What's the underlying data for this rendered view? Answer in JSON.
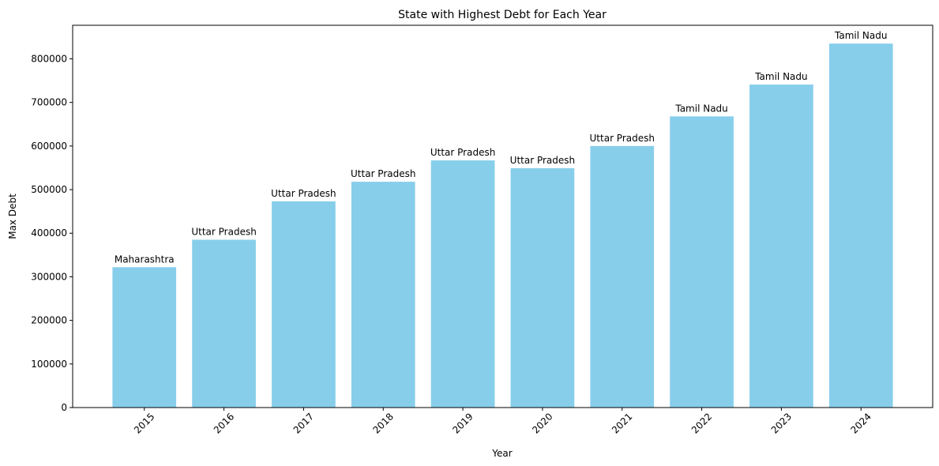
{
  "chart_data": {
    "type": "bar",
    "title": "State with Highest Debt for Each Year",
    "xlabel": "Year",
    "ylabel": "Max Debt",
    "categories": [
      "2015",
      "2016",
      "2017",
      "2018",
      "2019",
      "2020",
      "2021",
      "2022",
      "2023",
      "2024"
    ],
    "values": [
      322000,
      385000,
      473000,
      518000,
      567000,
      549000,
      600000,
      668000,
      741000,
      835000
    ],
    "bar_labels": [
      "Maharashtra",
      "Uttar Pradesh",
      "Uttar Pradesh",
      "Uttar Pradesh",
      "Uttar Pradesh",
      "Uttar Pradesh",
      "Uttar Pradesh",
      "Tamil Nadu",
      "Tamil Nadu",
      "Tamil Nadu"
    ],
    "yticks": [
      0,
      100000,
      200000,
      300000,
      400000,
      500000,
      600000,
      700000,
      800000
    ],
    "ytick_labels": [
      "0",
      "100000",
      "200000",
      "300000",
      "400000",
      "500000",
      "600000",
      "700000",
      "800000"
    ],
    "ylim": [
      0,
      877000
    ],
    "grid": false,
    "bar_color": "#87CEEB"
  }
}
